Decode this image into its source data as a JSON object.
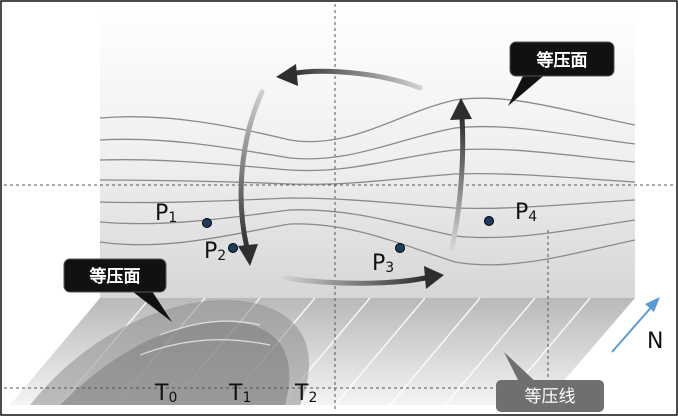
{
  "callouts": {
    "upper_surface": "等压面",
    "lower_surface": "等压面",
    "isobar": "等压线"
  },
  "points": {
    "p1": {
      "main": "P",
      "sub": "1"
    },
    "p2": {
      "main": "P",
      "sub": "2"
    },
    "p3": {
      "main": "P",
      "sub": "3"
    },
    "p4": {
      "main": "P",
      "sub": "4"
    }
  },
  "temperatures": {
    "t0": {
      "main": "T",
      "sub": "0"
    },
    "t1": {
      "main": "T",
      "sub": "1"
    },
    "t2": {
      "main": "T",
      "sub": "2"
    }
  },
  "north": "N",
  "colors": {
    "north_arrow": "#5b9bd5",
    "callout_bg": "#111111",
    "isobar_label_bg": "#6f6f6f",
    "point_dot": "#1f3b63",
    "circulation_arrow": "#3a3a3a"
  }
}
